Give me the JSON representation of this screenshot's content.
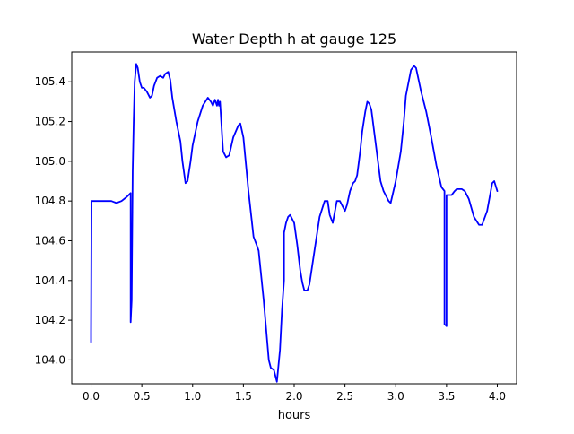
{
  "chart_data": {
    "type": "line",
    "title": "Water Depth h at gauge 125",
    "xlabel": "hours",
    "ylabel": "",
    "xlim": [
      -0.19,
      4.19
    ],
    "ylim": [
      103.88,
      105.55
    ],
    "xticks": [
      0.0,
      0.5,
      1.0,
      1.5,
      2.0,
      2.5,
      3.0,
      3.5,
      4.0
    ],
    "xtick_labels": [
      "0.0",
      "0.5",
      "1.0",
      "1.5",
      "2.0",
      "2.5",
      "3.0",
      "3.5",
      "4.0"
    ],
    "yticks": [
      104.0,
      104.2,
      104.4,
      104.6,
      104.8,
      105.0,
      105.2,
      105.4
    ],
    "ytick_labels": [
      "104.0",
      "104.2",
      "104.4",
      "104.6",
      "104.8",
      "105.0",
      "105.2",
      "105.4"
    ],
    "grid": false,
    "legend": "none",
    "series": [
      {
        "color": "#0000ff",
        "x": [
          0.0,
          0.0,
          0.005,
          0.01,
          0.1,
          0.2,
          0.25,
          0.3,
          0.35,
          0.39,
          0.39,
          0.4,
          0.41,
          0.42,
          0.43,
          0.445,
          0.46,
          0.48,
          0.5,
          0.52,
          0.55,
          0.58,
          0.6,
          0.62,
          0.65,
          0.68,
          0.71,
          0.73,
          0.76,
          0.78,
          0.8,
          0.84,
          0.88,
          0.9,
          0.93,
          0.95,
          0.98,
          1.0,
          1.05,
          1.1,
          1.15,
          1.18,
          1.2,
          1.22,
          1.24,
          1.25,
          1.26,
          1.27,
          1.3,
          1.33,
          1.36,
          1.4,
          1.45,
          1.47,
          1.5,
          1.55,
          1.6,
          1.63,
          1.65,
          1.67,
          1.7,
          1.72,
          1.75,
          1.77,
          1.8,
          1.83,
          1.86,
          1.88,
          1.9,
          1.9,
          1.92,
          1.94,
          1.96,
          2.0,
          2.03,
          2.06,
          2.08,
          2.1,
          2.13,
          2.15,
          2.2,
          2.25,
          2.3,
          2.33,
          2.35,
          2.38,
          2.42,
          2.45,
          2.5,
          2.52,
          2.55,
          2.58,
          2.6,
          2.62,
          2.65,
          2.67,
          2.7,
          2.72,
          2.74,
          2.76,
          2.8,
          2.85,
          2.88,
          2.9,
          2.93,
          2.95,
          3.0,
          3.05,
          3.08,
          3.1,
          3.15,
          3.18,
          3.2,
          3.25,
          3.3,
          3.35,
          3.4,
          3.45,
          3.48,
          3.48,
          3.5,
          3.5,
          3.52,
          3.55,
          3.58,
          3.6,
          3.65,
          3.68,
          3.72,
          3.77,
          3.82,
          3.85,
          3.9,
          3.95,
          3.97,
          4.0
        ],
        "y": [
          104.09,
          104.14,
          104.8,
          104.8,
          104.8,
          104.8,
          104.79,
          104.8,
          104.82,
          104.84,
          104.19,
          104.3,
          104.95,
          105.2,
          105.4,
          105.49,
          105.47,
          105.4,
          105.37,
          105.37,
          105.35,
          105.32,
          105.33,
          105.38,
          105.42,
          105.43,
          105.42,
          105.44,
          105.45,
          105.41,
          105.32,
          105.2,
          105.1,
          105.0,
          104.89,
          104.9,
          105.0,
          105.08,
          105.2,
          105.28,
          105.32,
          105.3,
          105.28,
          105.31,
          105.28,
          105.31,
          105.28,
          105.3,
          105.05,
          105.02,
          105.03,
          105.12,
          105.18,
          105.19,
          105.12,
          104.85,
          104.62,
          104.58,
          104.55,
          104.45,
          104.3,
          104.18,
          104.0,
          103.96,
          103.95,
          103.89,
          104.05,
          104.25,
          104.4,
          104.64,
          104.69,
          104.72,
          104.73,
          104.69,
          104.58,
          104.45,
          104.39,
          104.35,
          104.35,
          104.38,
          104.55,
          104.72,
          104.8,
          104.8,
          104.73,
          104.69,
          104.8,
          104.8,
          104.75,
          104.78,
          104.85,
          104.89,
          104.9,
          104.93,
          105.05,
          105.15,
          105.25,
          105.3,
          105.29,
          105.26,
          105.1,
          104.9,
          104.85,
          104.83,
          104.8,
          104.79,
          104.9,
          105.05,
          105.2,
          105.33,
          105.46,
          105.48,
          105.47,
          105.35,
          105.25,
          105.12,
          104.98,
          104.87,
          104.85,
          104.18,
          104.17,
          104.83,
          104.83,
          104.83,
          104.85,
          104.86,
          104.86,
          104.85,
          104.81,
          104.72,
          104.68,
          104.68,
          104.75,
          104.89,
          104.9,
          104.85
        ]
      }
    ]
  }
}
